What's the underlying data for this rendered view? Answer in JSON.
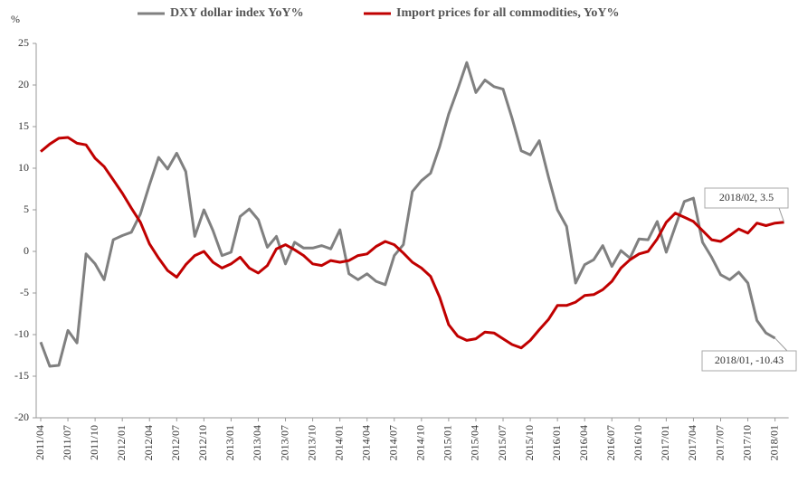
{
  "chart_data": {
    "type": "line",
    "y_label": "%",
    "categories": [
      "2011/04",
      null,
      null,
      "2011/07",
      null,
      null,
      "2011/10",
      null,
      null,
      "2012/01",
      null,
      null,
      "2012/04",
      null,
      null,
      "2012/07",
      null,
      null,
      "2012/10",
      null,
      null,
      "2013/01",
      null,
      null,
      "2013/04",
      null,
      null,
      "2013/07",
      null,
      null,
      "2013/10",
      null,
      null,
      "2014/01",
      null,
      null,
      "2014/04",
      null,
      null,
      "2014/07",
      null,
      null,
      "2014/10",
      null,
      null,
      "2015/01",
      null,
      null,
      "2015/04",
      null,
      null,
      "2015/07",
      null,
      null,
      "2015/10",
      null,
      null,
      "2016/01",
      null,
      null,
      "2016/04",
      null,
      null,
      "2016/07",
      null,
      null,
      "2016/10",
      null,
      null,
      "2017/01",
      null,
      null,
      "2017/04",
      null,
      null,
      "2017/07",
      null,
      null,
      "2017/10",
      null,
      null,
      "2018/01",
      null
    ],
    "series": [
      {
        "name": "DXY dollar index YoY%",
        "color": "#808080",
        "values": [
          -10.9,
          -13.8,
          -13.7,
          -9.5,
          -11,
          -0.3,
          -1.5,
          -3.4,
          1.4,
          1.9,
          2.3,
          4.5,
          8,
          11.3,
          9.9,
          11.8,
          9.6,
          1.8,
          5,
          2.5,
          -0.5,
          -0.1,
          4.2,
          5.1,
          3.8,
          0.5,
          1.8,
          -1.5,
          1.1,
          0.4,
          0.4,
          0.7,
          0.3,
          2.6,
          -2.7,
          -3.4,
          -2.7,
          -3.6,
          -4,
          -0.5,
          0.8,
          7.2,
          8.5,
          9.4,
          12.6,
          16.5,
          19.5,
          22.7,
          19.1,
          20.6,
          19.8,
          19.5,
          16,
          12.1,
          11.6,
          13.3,
          9,
          5,
          3,
          -3.8,
          -1.6,
          -1,
          0.7,
          -1.8,
          0.1,
          -0.8,
          1.5,
          1.4,
          3.6,
          -0.1,
          3,
          6,
          6.4,
          1.1,
          -0.7,
          -2.8,
          -3.4,
          -2.5,
          -3.8,
          -8.3,
          -9.8,
          -10.43,
          null
        ]
      },
      {
        "name": "Import prices for all commodities, YoY%",
        "color": "#c00000",
        "values": [
          12,
          12.9,
          13.6,
          13.7,
          13,
          12.8,
          11.2,
          10.2,
          8.6,
          7,
          5.2,
          3.5,
          0.9,
          -0.8,
          -2.3,
          -3.1,
          -1.6,
          -0.5,
          0,
          -1.3,
          -2,
          -1.5,
          -0.7,
          -2,
          -2.6,
          -1.7,
          0.3,
          0.8,
          0.2,
          -0.5,
          -1.5,
          -1.7,
          -1.1,
          -1.3,
          -1.1,
          -0.5,
          -0.3,
          0.6,
          1.2,
          0.8,
          -0.2,
          -1.3,
          -2,
          -3,
          -5.5,
          -8.8,
          -10.2,
          -10.7,
          -10.5,
          -9.7,
          -9.8,
          -10.5,
          -11.2,
          -11.6,
          -10.7,
          -9.4,
          -8.2,
          -6.5,
          -6.5,
          -6.1,
          -5.3,
          -5.2,
          -4.6,
          -3.6,
          -2,
          -1,
          -0.3,
          0,
          1.5,
          3.5,
          4.6,
          4.1,
          3.6,
          2.5,
          1.4,
          1.2,
          1.9,
          2.7,
          2.2,
          3.4,
          3.1,
          3.4,
          3.5
        ]
      }
    ],
    "annotations": [
      "2018/02, 3.5",
      "2018/01, -10.43"
    ],
    "ylim": [
      -20,
      25
    ],
    "yticks": [
      -20,
      -15,
      -10,
      -5,
      0,
      5,
      10,
      15,
      20,
      25
    ],
    "legend": "top",
    "grid": false
  }
}
